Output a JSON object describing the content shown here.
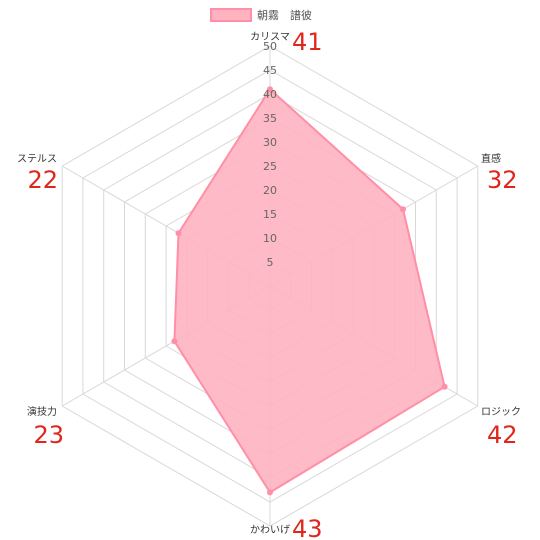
{
  "chart_data": {
    "type": "radar",
    "categories": [
      "カリスマ",
      "直感",
      "ロジック",
      "かわいげ",
      "演技力",
      "ステルス"
    ],
    "series": [
      {
        "name": "朝霧　譜彼",
        "values": [
          41,
          32,
          42,
          43,
          23,
          22
        ]
      }
    ],
    "value_labels": [
      "41",
      "32",
      "42",
      "43",
      "23",
      "22"
    ],
    "ticks": [
      "5",
      "10",
      "15",
      "20",
      "25",
      "30",
      "35",
      "40",
      "45",
      "50"
    ],
    "rlim": [
      0,
      50
    ],
    "legend_position": "top-center",
    "colors": {
      "fill": "#ffb3c1",
      "stroke": "#ff8fa6",
      "value_label": "#e0261c",
      "grid": "#d8d8d8"
    }
  }
}
